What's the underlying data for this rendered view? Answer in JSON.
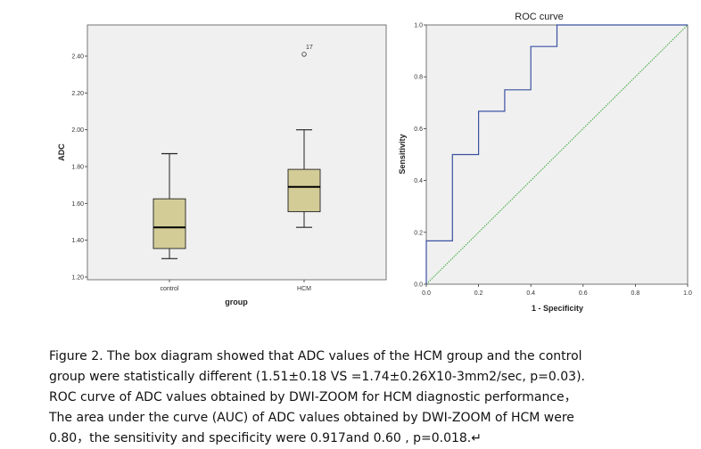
{
  "colors": {
    "box_fill": "#d3cc97",
    "box_stroke": "#222222",
    "plot_bg_left": "#f0f0f0",
    "plot_bg_right": "#f0f0f0",
    "roc_line": "#3b52a3",
    "ref_line": "#3aa83a"
  },
  "chart_data": [
    {
      "type": "box",
      "title": "",
      "xlabel": "group",
      "ylabel": "ADC",
      "ylim": [
        1.2,
        2.55
      ],
      "yticks": [
        1.2,
        1.4,
        1.6,
        1.8,
        2.0,
        2.2,
        2.4
      ],
      "ytick_labels": [
        "1.20",
        "1.40",
        "1.60",
        "1.80",
        "2.00",
        "2.20",
        "2.40"
      ],
      "categories": [
        "control",
        "HCM"
      ],
      "boxes": [
        {
          "name": "control",
          "min": 1.3,
          "q1": 1.355,
          "median": 1.47,
          "q3": 1.625,
          "max": 1.87
        },
        {
          "name": "HCM",
          "min": 1.47,
          "q1": 1.555,
          "median": 1.69,
          "q3": 1.785,
          "max": 2.0,
          "outliers": [
            {
              "value": 2.41,
              "label": "17"
            }
          ]
        }
      ]
    },
    {
      "type": "line",
      "title": "ROC curve",
      "xlabel": "1 - Specificity",
      "ylabel": "Sensitivity",
      "xlim": [
        0,
        1
      ],
      "ylim": [
        0,
        1
      ],
      "xtick_labels": [
        "0.0",
        "0.2",
        "0.4",
        "0.6",
        "0.8",
        "1.0"
      ],
      "ytick_labels": [
        "0.0",
        "0.2",
        "0.4",
        "0.6",
        "0.8",
        "1.0"
      ],
      "series": [
        {
          "name": "ROC",
          "x": [
            0,
            0,
            0.1,
            0.1,
            0.2,
            0.2,
            0.3,
            0.3,
            0.4,
            0.4,
            0.5,
            0.5,
            1.0
          ],
          "y": [
            0,
            0.167,
            0.167,
            0.5,
            0.5,
            0.667,
            0.667,
            0.75,
            0.75,
            0.917,
            0.917,
            1.0,
            1.0
          ]
        },
        {
          "name": "Reference line",
          "x": [
            0,
            1
          ],
          "y": [
            0,
            1
          ]
        }
      ]
    }
  ],
  "caption": {
    "line1": "Figure 2. The box diagram showed that ADC values of the HCM group and the control",
    "line2": "group were statistically different (1.51±0.18 VS =1.74±0.26X10-3mm2/sec, p=0.03).",
    "line3": "ROC curve of ADC values obtained by DWI-ZOOM for HCM diagnostic performance，",
    "line4": "The area under the curve (AUC) of ADC values obtained by DWI-ZOOM of HCM were",
    "line5": "0.80，the sensitivity and specificity were 0.917and 0.60 , p=0.018.↵"
  }
}
